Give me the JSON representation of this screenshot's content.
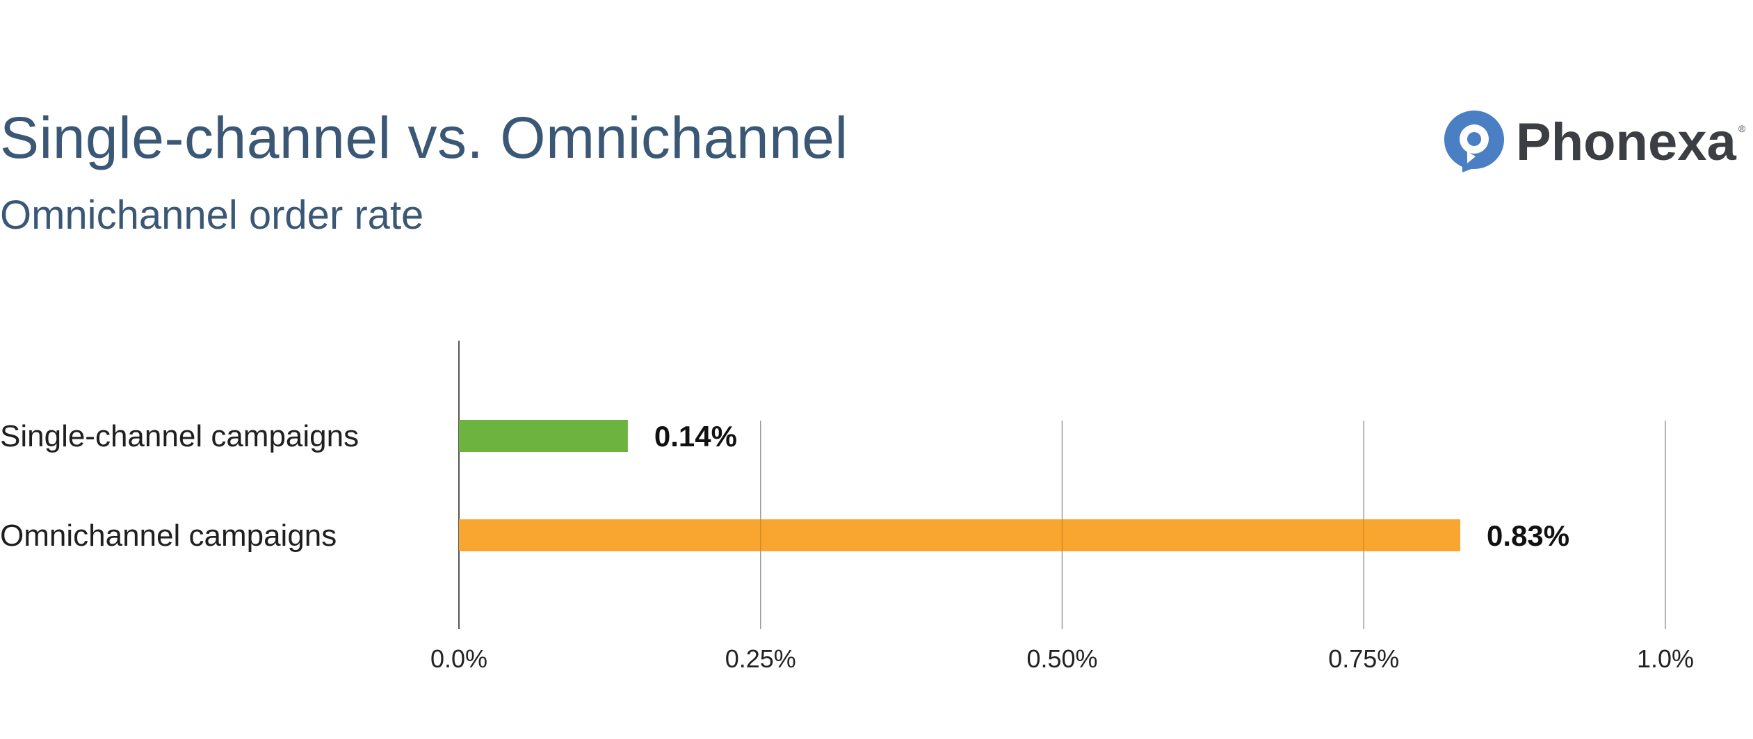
{
  "brand": {
    "name": "Phonexa",
    "registered_mark": "®",
    "accent_color": "#4a7fc4"
  },
  "chart_data": {
    "type": "bar",
    "orientation": "horizontal",
    "title": "Single-channel vs. Omnichannel",
    "subtitle": "Omnichannel order rate",
    "categories": [
      "Single-channel campaigns",
      "Omnichannel campaigns"
    ],
    "values": [
      0.14,
      0.83
    ],
    "value_labels": [
      "0.14%",
      "0.83%"
    ],
    "colors": [
      "#6db33f",
      "#f9a630"
    ],
    "xlim": [
      0,
      1.0
    ],
    "x_ticks": [
      0,
      0.25,
      0.5,
      0.75,
      1.0
    ],
    "x_tick_labels": [
      "0.0%",
      "0.25%",
      "0.50%",
      "0.75%",
      "1.0%"
    ],
    "grid": true,
    "legend": "none"
  }
}
